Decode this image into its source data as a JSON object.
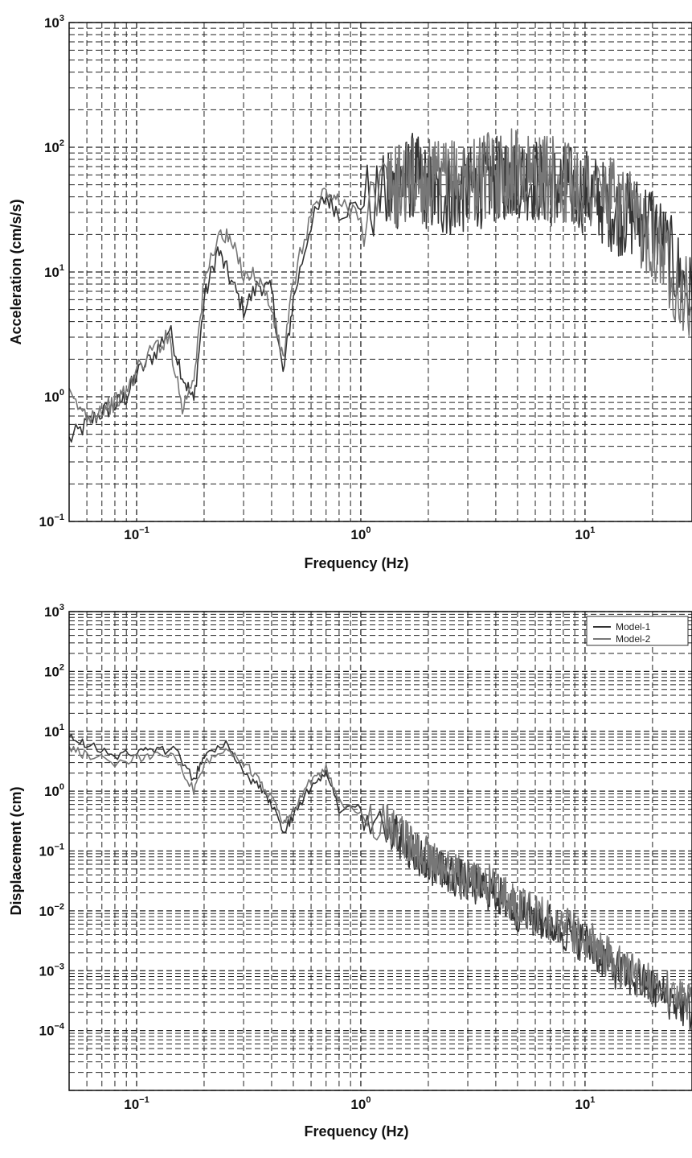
{
  "chart_data": [
    {
      "type": "line",
      "xlabel": "Frequency (Hz)",
      "ylabel": "Acceleration (cm/s/s)",
      "xscale": "log",
      "yscale": "log",
      "xlim": [
        0.05,
        30
      ],
      "ylim": [
        0.1,
        1000
      ],
      "xticks": [
        {
          "value": 0.1,
          "base": "10",
          "exp": "−1"
        },
        {
          "value": 1,
          "base": "10",
          "exp": "0"
        },
        {
          "value": 10,
          "base": "10",
          "exp": "1"
        }
      ],
      "yticks": [
        {
          "value": 0.1,
          "base": "10",
          "exp": "−1"
        },
        {
          "value": 1,
          "base": "10",
          "exp": "0"
        },
        {
          "value": 10,
          "base": "10",
          "exp": "1"
        },
        {
          "value": 100,
          "base": "10",
          "exp": "2"
        },
        {
          "value": 1000,
          "base": "10",
          "exp": "3"
        }
      ],
      "grid": true,
      "series": [
        {
          "name": "Model-1",
          "color": "#333333",
          "x": [
            0.05,
            0.06,
            0.07,
            0.08,
            0.09,
            0.1,
            0.12,
            0.14,
            0.16,
            0.18,
            0.2,
            0.23,
            0.26,
            0.3,
            0.35,
            0.4,
            0.45,
            0.5,
            0.6,
            0.7,
            0.8,
            1.0,
            1.3,
            1.7,
            2.2,
            3,
            4,
            5,
            7,
            10,
            14,
            20,
            30
          ],
          "y": [
            0.45,
            0.6,
            0.75,
            0.85,
            1.0,
            1.5,
            2.2,
            3.5,
            1.5,
            0.9,
            6,
            15,
            9,
            5,
            8,
            7,
            1.5,
            6,
            25,
            40,
            30,
            35,
            40,
            60,
            40,
            45,
            55,
            60,
            50,
            45,
            30,
            25,
            6
          ]
        },
        {
          "name": "Model-2",
          "color": "#777777",
          "x": [
            0.05,
            0.06,
            0.07,
            0.08,
            0.09,
            0.1,
            0.12,
            0.14,
            0.16,
            0.18,
            0.2,
            0.23,
            0.26,
            0.3,
            0.35,
            0.4,
            0.45,
            0.5,
            0.6,
            0.7,
            0.8,
            1.0,
            1.3,
            1.7,
            2.2,
            3,
            4,
            5,
            7,
            10,
            14,
            20,
            30
          ],
          "y": [
            1.0,
            0.7,
            0.8,
            0.9,
            1.1,
            1.6,
            2.5,
            3.0,
            0.8,
            1.5,
            8,
            20,
            18,
            10,
            9,
            5,
            2.0,
            8,
            30,
            45,
            35,
            30,
            45,
            55,
            50,
            55,
            60,
            65,
            55,
            50,
            35,
            20,
            5
          ]
        }
      ]
    },
    {
      "type": "line",
      "xlabel": "Frequency (Hz)",
      "ylabel": "Displacement (cm)",
      "xscale": "log",
      "yscale": "log",
      "xlim": [
        0.05,
        30
      ],
      "ylim": [
        1e-05,
        1000
      ],
      "xticks": [
        {
          "value": 0.1,
          "base": "10",
          "exp": "−1"
        },
        {
          "value": 1,
          "base": "10",
          "exp": "0"
        },
        {
          "value": 10,
          "base": "10",
          "exp": "1"
        }
      ],
      "yticks": [
        {
          "value": 0.0001,
          "base": "10",
          "exp": "−4"
        },
        {
          "value": 0.001,
          "base": "10",
          "exp": "−3"
        },
        {
          "value": 0.01,
          "base": "10",
          "exp": "−2"
        },
        {
          "value": 0.1,
          "base": "10",
          "exp": "−1"
        },
        {
          "value": 1,
          "base": "10",
          "exp": "0"
        },
        {
          "value": 10,
          "base": "10",
          "exp": "1"
        },
        {
          "value": 100,
          "base": "10",
          "exp": "2"
        },
        {
          "value": 1000,
          "base": "10",
          "exp": "3"
        }
      ],
      "grid": true,
      "legend": {
        "position": "top-right",
        "entries": [
          "Model-1",
          "Model-2"
        ]
      },
      "series": [
        {
          "name": "Model-1",
          "color": "#333333",
          "x": [
            0.05,
            0.06,
            0.08,
            0.1,
            0.12,
            0.15,
            0.18,
            0.2,
            0.25,
            0.3,
            0.35,
            0.4,
            0.45,
            0.5,
            0.6,
            0.7,
            0.8,
            1.0,
            1.3,
            1.7,
            2.2,
            3,
            4,
            5,
            7,
            10,
            14,
            20,
            30
          ],
          "y": [
            8,
            6,
            4,
            4.5,
            4.5,
            5,
            1.5,
            4,
            6,
            2,
            1.2,
            0.6,
            0.2,
            0.4,
            1.2,
            2,
            0.5,
            0.5,
            0.25,
            0.1,
            0.05,
            0.03,
            0.02,
            0.01,
            0.006,
            0.003,
            0.001,
            0.0005,
            0.0002
          ]
        },
        {
          "name": "Model-2",
          "color": "#777777",
          "x": [
            0.05,
            0.06,
            0.08,
            0.1,
            0.12,
            0.15,
            0.18,
            0.2,
            0.25,
            0.3,
            0.35,
            0.4,
            0.45,
            0.5,
            0.6,
            0.7,
            0.8,
            1.0,
            1.3,
            1.7,
            2.2,
            3,
            4,
            5,
            7,
            10,
            14,
            20,
            30
          ],
          "y": [
            5,
            4,
            3,
            3.5,
            4,
            3.5,
            1.0,
            3,
            5,
            3,
            1.5,
            0.8,
            0.3,
            0.5,
            1.5,
            2.5,
            0.7,
            0.4,
            0.3,
            0.12,
            0.06,
            0.035,
            0.025,
            0.012,
            0.007,
            0.0035,
            0.0012,
            0.0006,
            0.0003
          ]
        }
      ]
    }
  ]
}
